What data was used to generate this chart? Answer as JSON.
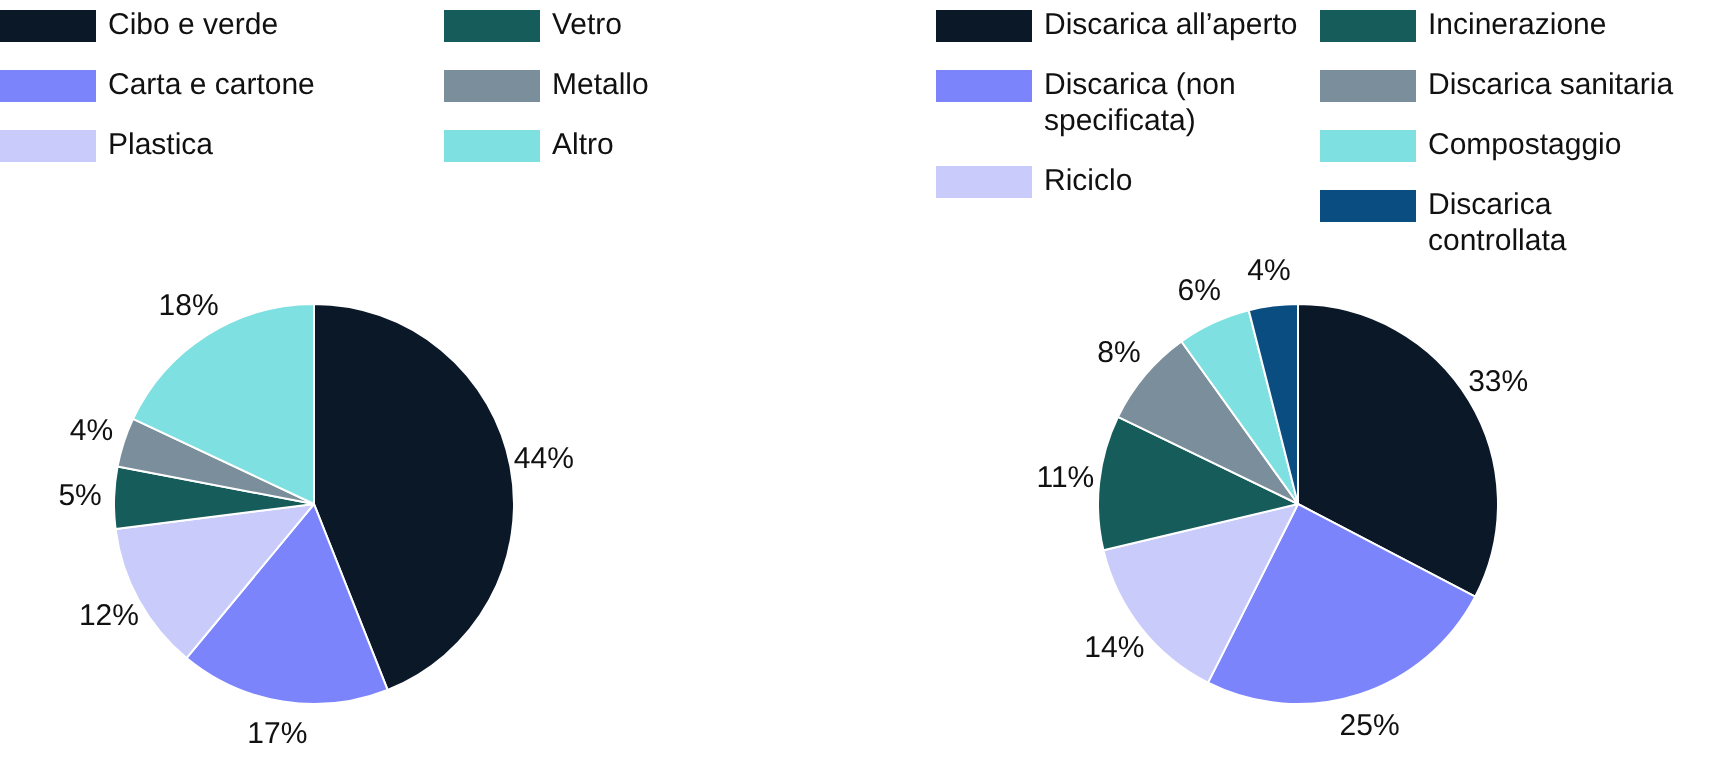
{
  "chart_data": [
    {
      "type": "pie",
      "categories": [
        "Cibo e verde",
        "Carta e cartone",
        "Plastica",
        "Vetro",
        "Metallo",
        "Altro"
      ],
      "values": [
        44,
        17,
        12,
        5,
        4,
        18
      ],
      "colors": [
        "#0b1828",
        "#7b84fb",
        "#c9ccfb",
        "#155c5b",
        "#7a8e9b",
        "#7fe0e2"
      ],
      "legend": "top",
      "value_labels": [
        "44%",
        "17%",
        "12%",
        "5%",
        "4%",
        "18%"
      ]
    },
    {
      "type": "pie",
      "categories": [
        "Discarica all’aperto",
        "Discarica (non specificata)",
        "Riciclo",
        "Incinerazione",
        "Discarica sanitaria",
        "Compostaggio",
        "Discarica controllata"
      ],
      "values": [
        33,
        25,
        14,
        11,
        8,
        6,
        4
      ],
      "colors": [
        "#0b1828",
        "#7b84fb",
        "#c9ccfb",
        "#155c5b",
        "#7a8e9b",
        "#7fe0e2",
        "#0a4d80"
      ],
      "legend": "top",
      "value_labels": [
        "33%",
        "25%",
        "14%",
        "11%",
        "8%",
        "6%",
        "4%"
      ]
    }
  ]
}
